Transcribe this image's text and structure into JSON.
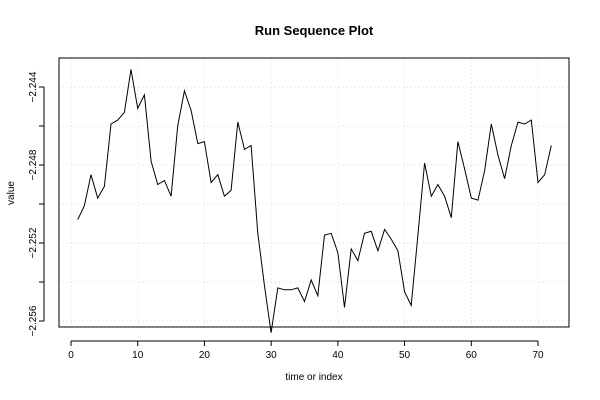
{
  "chart_data": {
    "type": "line",
    "title": "Run Sequence Plot",
    "xlabel": "time or index",
    "ylabel": "value",
    "xlim": [
      0,
      75
    ],
    "ylim": [
      -2.2559,
      -2.2444
    ],
    "x_ticks": [
      {
        "value": 0,
        "label": "0"
      },
      {
        "value": 10,
        "label": "10"
      },
      {
        "value": 20,
        "label": "20"
      },
      {
        "value": 30,
        "label": "30"
      },
      {
        "value": 40,
        "label": "40"
      },
      {
        "value": 50,
        "label": "50"
      },
      {
        "value": 60,
        "label": "60"
      },
      {
        "value": 70,
        "label": "70"
      }
    ],
    "y_ticks": [
      {
        "value": -2.244,
        "label": "−2.244"
      },
      {
        "value": -2.248,
        "label": "−2.248"
      },
      {
        "value": -2.252,
        "label": "−2.252"
      },
      {
        "value": -2.256,
        "label": "−2.256"
      }
    ],
    "y_minor_ticks": [
      -2.246,
      -2.25,
      -2.254
    ],
    "grid": true,
    "series": [
      {
        "color": "#000000",
        "x": [
          1,
          2,
          3,
          4,
          5,
          6,
          7,
          8,
          9,
          10,
          11,
          12,
          13,
          14,
          15,
          16,
          17,
          18,
          19,
          20,
          21,
          22,
          23,
          24,
          25,
          26,
          27,
          28,
          29,
          30,
          31,
          32,
          33,
          34,
          35,
          36,
          37,
          38,
          39,
          40,
          41,
          42,
          43,
          44,
          45,
          46,
          47,
          48,
          49,
          50,
          51,
          52,
          53,
          54,
          55,
          56,
          57,
          58,
          59,
          60,
          61,
          62,
          63,
          64,
          65,
          66,
          67,
          68,
          69,
          70,
          71,
          72
        ],
        "values": [
          -2.2508,
          -2.2501,
          -2.2485,
          -2.2497,
          -2.2491,
          -2.2459,
          -2.2457,
          -2.2453,
          -2.2431,
          -2.2451,
          -2.2444,
          -2.2478,
          -2.249,
          -2.2488,
          -2.2496,
          -2.246,
          -2.2442,
          -2.2452,
          -2.2469,
          -2.2468,
          -2.2489,
          -2.2485,
          -2.2496,
          -2.2493,
          -2.2458,
          -2.2472,
          -2.247,
          -2.2515,
          -2.2542,
          -2.2566,
          -2.2543,
          -2.2544,
          -2.2544,
          -2.2543,
          -2.255,
          -2.2539,
          -2.2547,
          -2.2516,
          -2.2515,
          -2.2525,
          -2.2553,
          -2.2523,
          -2.2529,
          -2.2515,
          -2.2514,
          -2.2524,
          -2.2513,
          -2.2518,
          -2.2524,
          -2.2545,
          -2.2552,
          -2.2516,
          -2.2479,
          -2.2496,
          -2.249,
          -2.2496,
          -2.2507,
          -2.2468,
          -2.2482,
          -2.2497,
          -2.2498,
          -2.2483,
          -2.2459,
          -2.2475,
          -2.2487,
          -2.247,
          -2.2458,
          -2.2459,
          -2.2457,
          -2.2489,
          -2.2485,
          -2.247
        ]
      }
    ]
  }
}
